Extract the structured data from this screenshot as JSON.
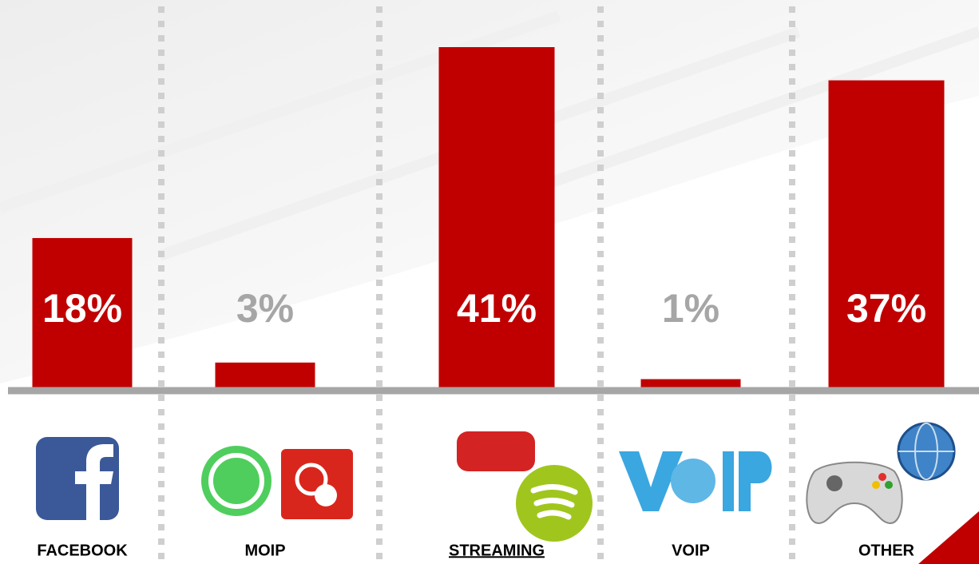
{
  "chart_data": {
    "type": "bar",
    "categories": [
      "FACEBOOK",
      "MOIP",
      "STREAMING",
      "VOIP",
      "OTHER"
    ],
    "values": [
      18,
      3,
      41,
      1,
      37
    ],
    "value_labels": [
      "18%",
      "3%",
      "41%",
      "1%",
      "37%"
    ],
    "color": "#c00000"
  }
}
